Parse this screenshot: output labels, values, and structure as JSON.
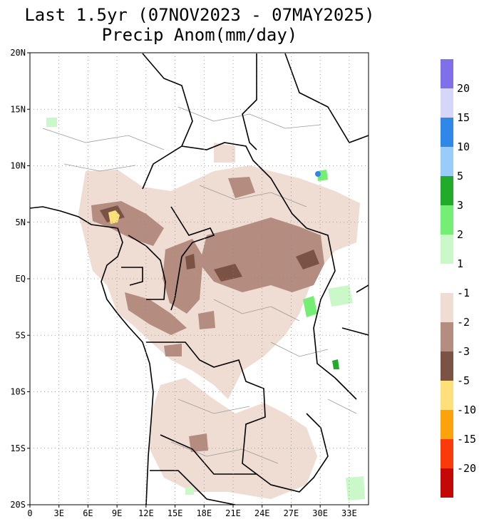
{
  "title": {
    "line1": "Last 1.5yr (07NOV2023 - 07MAY2025)",
    "line2": "Precip Anom(mm/day)"
  },
  "map": {
    "lat_labels": [
      "20N",
      "15N",
      "10N",
      "5N",
      "EQ",
      "5S",
      "10S",
      "15S",
      "20S"
    ],
    "lon_labels": [
      "0",
      "3E",
      "6E",
      "9E",
      "12E",
      "15E",
      "18E",
      "21E",
      "24E",
      "27E",
      "30E",
      "33E"
    ],
    "lat_range": [
      -20,
      20
    ],
    "lon_range": [
      0,
      35
    ],
    "grid_style": "dotted"
  },
  "colorbar_positive": {
    "labels": [
      "20",
      "15",
      "10",
      "5",
      "3",
      "2",
      "1"
    ],
    "colors": [
      "#7f6fe8",
      "#d6d6f8",
      "#2f87e8",
      "#99ccf8",
      "#22aa2a",
      "#74ee74",
      "#caf8c8"
    ]
  },
  "colorbar_negative": {
    "labels": [
      "-1",
      "-2",
      "-3",
      "-5",
      "-10",
      "-15",
      "-20"
    ],
    "colors": [
      "#efdcd2",
      "#b48c80",
      "#7b5244",
      "#fde07a",
      "#fca20a",
      "#fb3a0a",
      "#c40808"
    ]
  },
  "colors": {
    "coast": "#000000",
    "border": "#000000",
    "admin": "#9a9a9a",
    "grid": "#8a8a8a",
    "land": "#ffffff"
  }
}
